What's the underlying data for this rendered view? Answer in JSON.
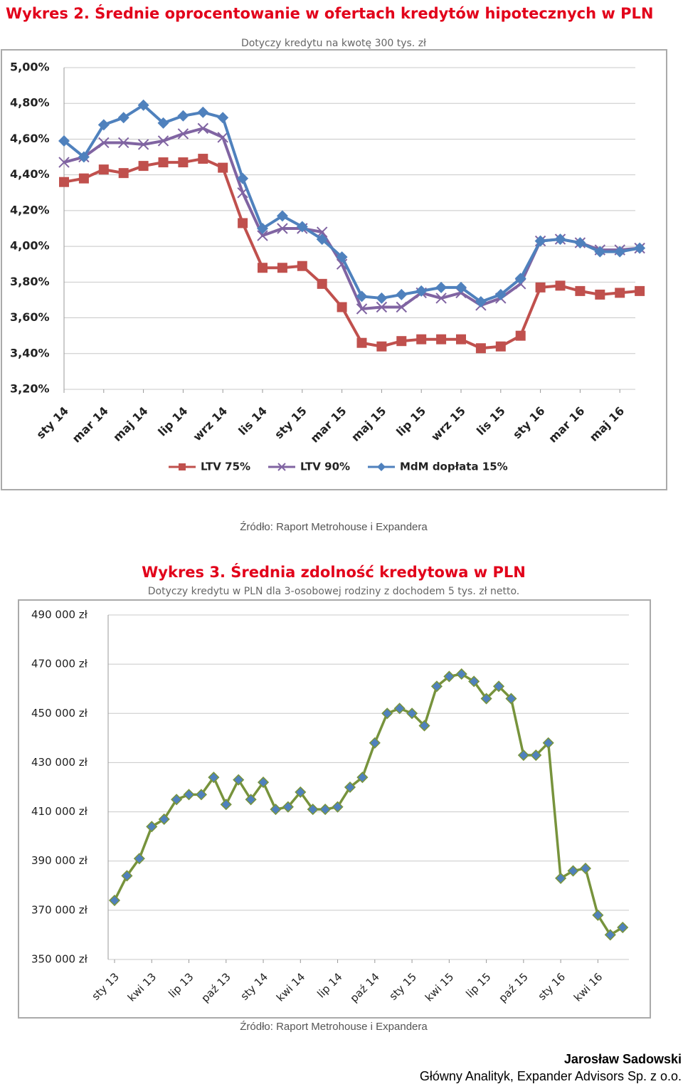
{
  "chart_data": [
    {
      "type": "line",
      "title": "Wykres 2. Średnie oprocentowanie w ofertach kredytów hipotecznych w PLN",
      "subtitle": "Dotyczy kredytu na kwotę 300 tys. zł",
      "source": "Źródło: Raport Metrohouse i Expandera",
      "categories": [
        "sty 14",
        null,
        "mar 14",
        null,
        "maj 14",
        null,
        "lip 14",
        null,
        "wrz 14",
        null,
        "lis 14",
        null,
        "sty 15",
        null,
        "mar 15",
        null,
        "maj 15",
        null,
        "lip 15",
        null,
        "wrz 15",
        null,
        "lis 15",
        null,
        "sty 16",
        null,
        "mar 16",
        null,
        "maj 16",
        null
      ],
      "series": [
        {
          "name": "LTV 75%",
          "color": "#c0504d",
          "marker": "square",
          "values": [
            4.36,
            4.38,
            4.43,
            4.41,
            4.45,
            4.47,
            4.47,
            4.49,
            4.44,
            4.13,
            3.88,
            3.88,
            3.89,
            3.79,
            3.66,
            3.46,
            3.44,
            3.47,
            3.48,
            3.48,
            3.48,
            3.43,
            3.44,
            3.5,
            3.77,
            3.78,
            3.75,
            3.73,
            3.74,
            3.75
          ]
        },
        {
          "name": "LTV 90%",
          "color": "#8064a2",
          "marker": "x",
          "values": [
            4.47,
            4.5,
            4.58,
            4.58,
            4.57,
            4.59,
            4.63,
            4.66,
            4.61,
            4.3,
            4.06,
            4.1,
            4.1,
            4.08,
            3.9,
            3.65,
            3.66,
            3.66,
            3.74,
            3.71,
            3.74,
            3.67,
            3.71,
            3.79,
            4.03,
            4.04,
            4.02,
            3.98,
            3.98,
            3.99
          ]
        },
        {
          "name": "MdM dopłata 15%",
          "color": "#4f81bd",
          "marker": "diamond",
          "values": [
            4.59,
            4.5,
            4.68,
            4.72,
            4.79,
            4.69,
            4.73,
            4.75,
            4.72,
            4.38,
            4.1,
            4.17,
            4.11,
            4.04,
            3.94,
            3.72,
            3.71,
            3.73,
            3.75,
            3.77,
            3.77,
            3.69,
            3.73,
            3.82,
            4.03,
            4.04,
            4.02,
            3.97,
            3.97,
            3.99
          ]
        }
      ],
      "ylim": [
        3.2,
        5.0
      ],
      "yticks": [
        {
          "value": 3.2,
          "label": "3,20%"
        },
        {
          "value": 3.4,
          "label": "3,40%"
        },
        {
          "value": 3.6,
          "label": "3,60%"
        },
        {
          "value": 3.8,
          "label": "3,80%"
        },
        {
          "value": 4.0,
          "label": "4,00%"
        },
        {
          "value": 4.2,
          "label": "4,20%"
        },
        {
          "value": 4.4,
          "label": "4,40%"
        },
        {
          "value": 4.6,
          "label": "4,60%"
        },
        {
          "value": 4.8,
          "label": "4,80%"
        },
        {
          "value": 5.0,
          "label": "5,00%"
        }
      ],
      "grid": true,
      "legend": "bottom"
    },
    {
      "type": "line",
      "title": "Wykres 3. Średnia zdolność kredytowa w PLN",
      "subtitle": "Dotyczy kredytu w PLN dla 3-osobowej rodziny z dochodem 5 tys. zł netto.",
      "source": "Źródło: Raport Metrohouse i Expandera",
      "categories": [
        "sty 13",
        null,
        null,
        "kwi 13",
        null,
        null,
        "lip 13",
        null,
        null,
        "paź 13",
        null,
        null,
        "sty 14",
        null,
        null,
        "kwi 14",
        null,
        null,
        "lip 14",
        null,
        null,
        "paź 14",
        null,
        null,
        "sty 15",
        null,
        null,
        "kwi 15",
        null,
        null,
        "lip 15",
        null,
        null,
        "paź 15",
        null,
        null,
        "sty 16",
        null,
        null,
        "kwi 16",
        null,
        null
      ],
      "color": "#77933c",
      "marker": "diamond",
      "marker_color": "#4f81bd",
      "values": [
        374000,
        384000,
        391000,
        404000,
        407000,
        415000,
        417000,
        417000,
        424000,
        413000,
        423000,
        415000,
        422000,
        411000,
        412000,
        418000,
        411000,
        411000,
        412000,
        420000,
        424000,
        438000,
        450000,
        452000,
        450000,
        445000,
        461000,
        465000,
        466000,
        463000,
        456000,
        461000,
        456000,
        433000,
        433000,
        438000,
        383000,
        386000,
        387000,
        368000,
        360000,
        363000
      ],
      "ylim": [
        350000,
        490000
      ],
      "yticks": [
        {
          "value": 350000,
          "label": "350 000 zł"
        },
        {
          "value": 370000,
          "label": "370 000 zł"
        },
        {
          "value": 390000,
          "label": "390 000 zł"
        },
        {
          "value": 410000,
          "label": "410 000 zł"
        },
        {
          "value": 430000,
          "label": "430 000 zł"
        },
        {
          "value": 450000,
          "label": "450 000 zł"
        },
        {
          "value": 470000,
          "label": "470 000 zł"
        },
        {
          "value": 490000,
          "label": "490 000 zł"
        }
      ],
      "grid": true
    }
  ],
  "author": {
    "name": "Jarosław Sadowski",
    "role": "Główny Analityk, Expander Advisors Sp. z o.o."
  }
}
